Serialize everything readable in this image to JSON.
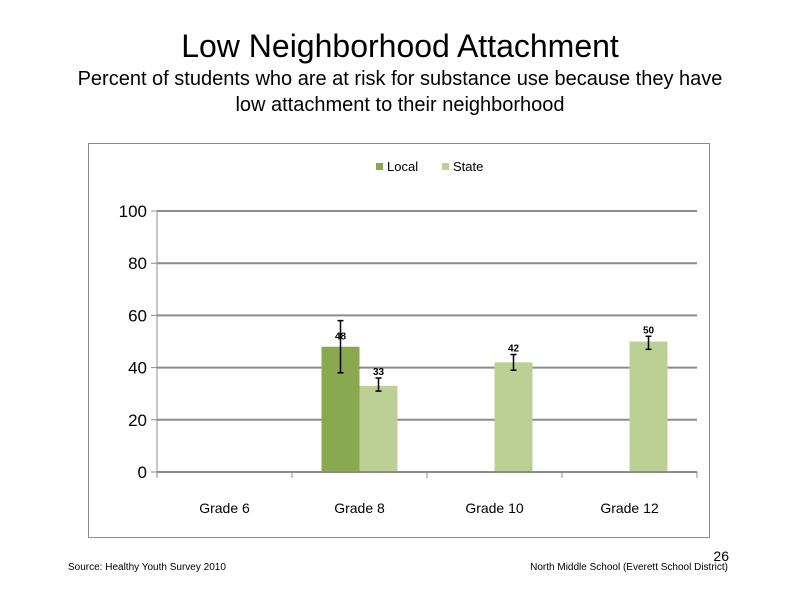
{
  "slide": {
    "title": "Low Neighborhood  Attachment",
    "subtitle": "Percent of students  who are at risk  for substance  use because  they have low attachment  to their neighborhood",
    "source": "Source: Healthy  Youth Survey 2010",
    "school": "North Middle  School  (Everett School District)",
    "slide_number": "26"
  },
  "chart_data": {
    "type": "bar",
    "categories": [
      "Grade 6",
      "Grade 8",
      "Grade 10",
      "Grade 12"
    ],
    "series": [
      {
        "name": "Local",
        "color": "#8aa84f",
        "values": [
          null,
          48,
          null,
          null
        ],
        "error_low": [
          null,
          38,
          null,
          null
        ],
        "error_high": [
          null,
          58,
          null,
          null
        ],
        "labels": [
          "",
          "48",
          "",
          ""
        ]
      },
      {
        "name": "State",
        "color": "#bcd096",
        "values": [
          null,
          33,
          42,
          50
        ],
        "error_low": [
          null,
          31,
          39,
          47
        ],
        "error_high": [
          null,
          36,
          45,
          52
        ],
        "labels": [
          "",
          "33",
          "42",
          "50"
        ]
      }
    ],
    "ylim": [
      0,
      100
    ],
    "yticks": [
      "0",
      "20",
      "40",
      "60",
      "80",
      "100"
    ],
    "grid": true,
    "legend_position": "top-center",
    "axis_color": "#8c8c8c",
    "grid_color": "#8c8c8c"
  }
}
